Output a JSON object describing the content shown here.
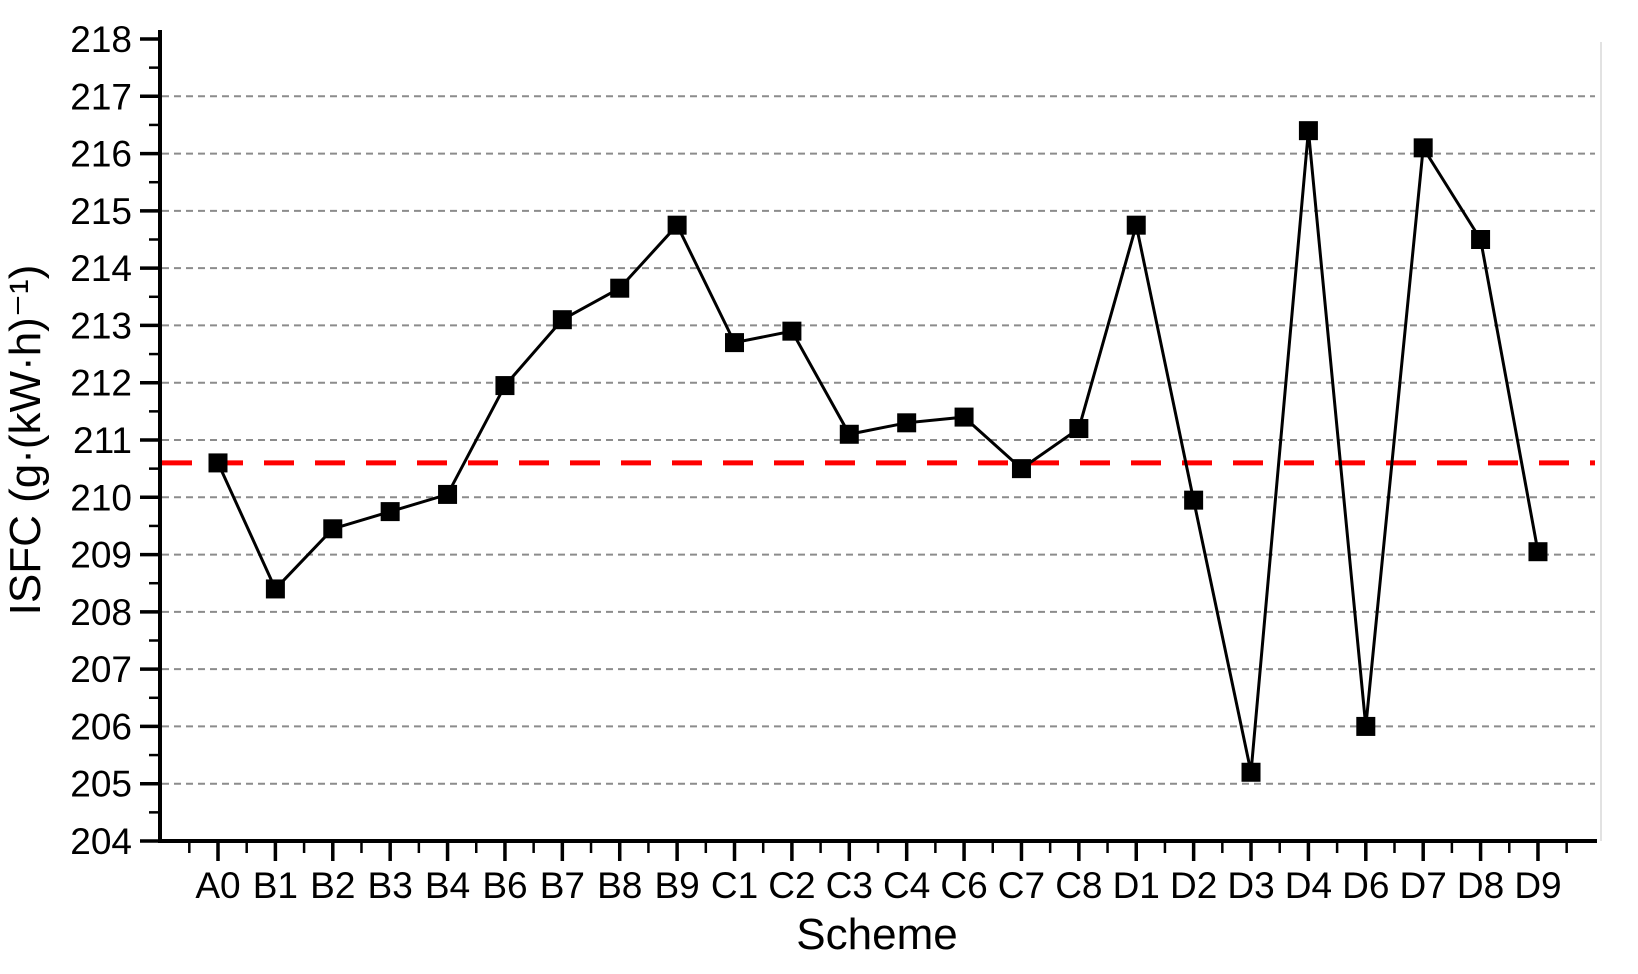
{
  "figure": {
    "xlabel": "Scheme",
    "ylabel": "ISFC (g·(kW·h)⁻¹)"
  },
  "chart_data": {
    "type": "line",
    "title": "",
    "xlabel": "Scheme",
    "ylabel": "ISFC (g·(kW·h)⁻¹)",
    "categories": [
      "A0",
      "B1",
      "B2",
      "B3",
      "B4",
      "B6",
      "B7",
      "B8",
      "B9",
      "C1",
      "C2",
      "C3",
      "C4",
      "C6",
      "C7",
      "C8",
      "D1",
      "D2",
      "D3",
      "D4",
      "D6",
      "D7",
      "D8",
      "D9"
    ],
    "series": [
      {
        "name": "ISFC",
        "values": [
          210.6,
          208.4,
          209.45,
          209.75,
          210.05,
          211.95,
          213.1,
          213.65,
          214.75,
          212.7,
          212.9,
          211.1,
          211.3,
          211.4,
          210.5,
          211.2,
          214.75,
          209.95,
          205.2,
          216.4,
          206.0,
          216.1,
          214.5,
          209.05
        ],
        "line_color": "#000000",
        "marker": "square",
        "marker_color": "#000000"
      }
    ],
    "reference_line": {
      "value": 210.6,
      "color": "#ff0000",
      "style": "dashed"
    },
    "ylim": [
      204,
      218
    ],
    "yticks": [
      204,
      205,
      206,
      207,
      208,
      209,
      210,
      211,
      212,
      213,
      214,
      215,
      216,
      217,
      218
    ],
    "ytick_step_minor": 0.5,
    "grid": "horizontal-dashed",
    "grid_color": "#8c8c8c",
    "legend": "none",
    "background": "#ffffff"
  }
}
